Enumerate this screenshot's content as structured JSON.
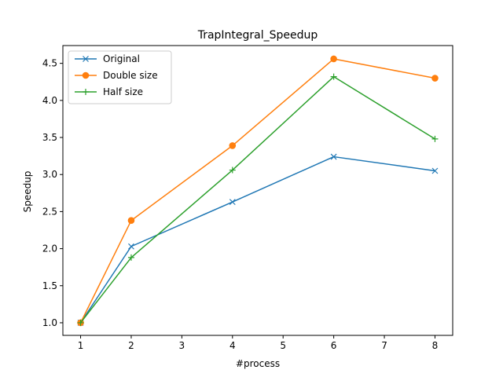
{
  "chart_data": {
    "type": "line",
    "title": "TrapIntegral_Speedup",
    "xlabel": "#process",
    "ylabel": "Speedup",
    "x": [
      1,
      2,
      4,
      6,
      8
    ],
    "xlim": [
      0.65,
      8.35
    ],
    "ylim": [
      0.83,
      4.74
    ],
    "xticks": [
      1,
      2,
      3,
      4,
      5,
      6,
      7,
      8
    ],
    "yticks": [
      1.0,
      1.5,
      2.0,
      2.5,
      3.0,
      3.5,
      4.0,
      4.5
    ],
    "xtick_labels": [
      "1",
      "2",
      "3",
      "4",
      "5",
      "6",
      "7",
      "8"
    ],
    "ytick_labels": [
      "1.0",
      "1.5",
      "2.0",
      "2.5",
      "3.0",
      "3.5",
      "4.0",
      "4.5"
    ],
    "grid": false,
    "legend_position": "top-left",
    "series": [
      {
        "name": "Original",
        "values": [
          1.0,
          2.03,
          2.63,
          3.24,
          3.05
        ],
        "color": "#1f77b4",
        "marker": "x"
      },
      {
        "name": "Double size",
        "values": [
          1.0,
          2.38,
          3.39,
          4.56,
          4.3
        ],
        "color": "#ff7f0e",
        "marker": "o"
      },
      {
        "name": "Half size",
        "values": [
          1.0,
          1.88,
          3.06,
          4.32,
          3.48
        ],
        "color": "#2ca02c",
        "marker": "+"
      }
    ]
  }
}
